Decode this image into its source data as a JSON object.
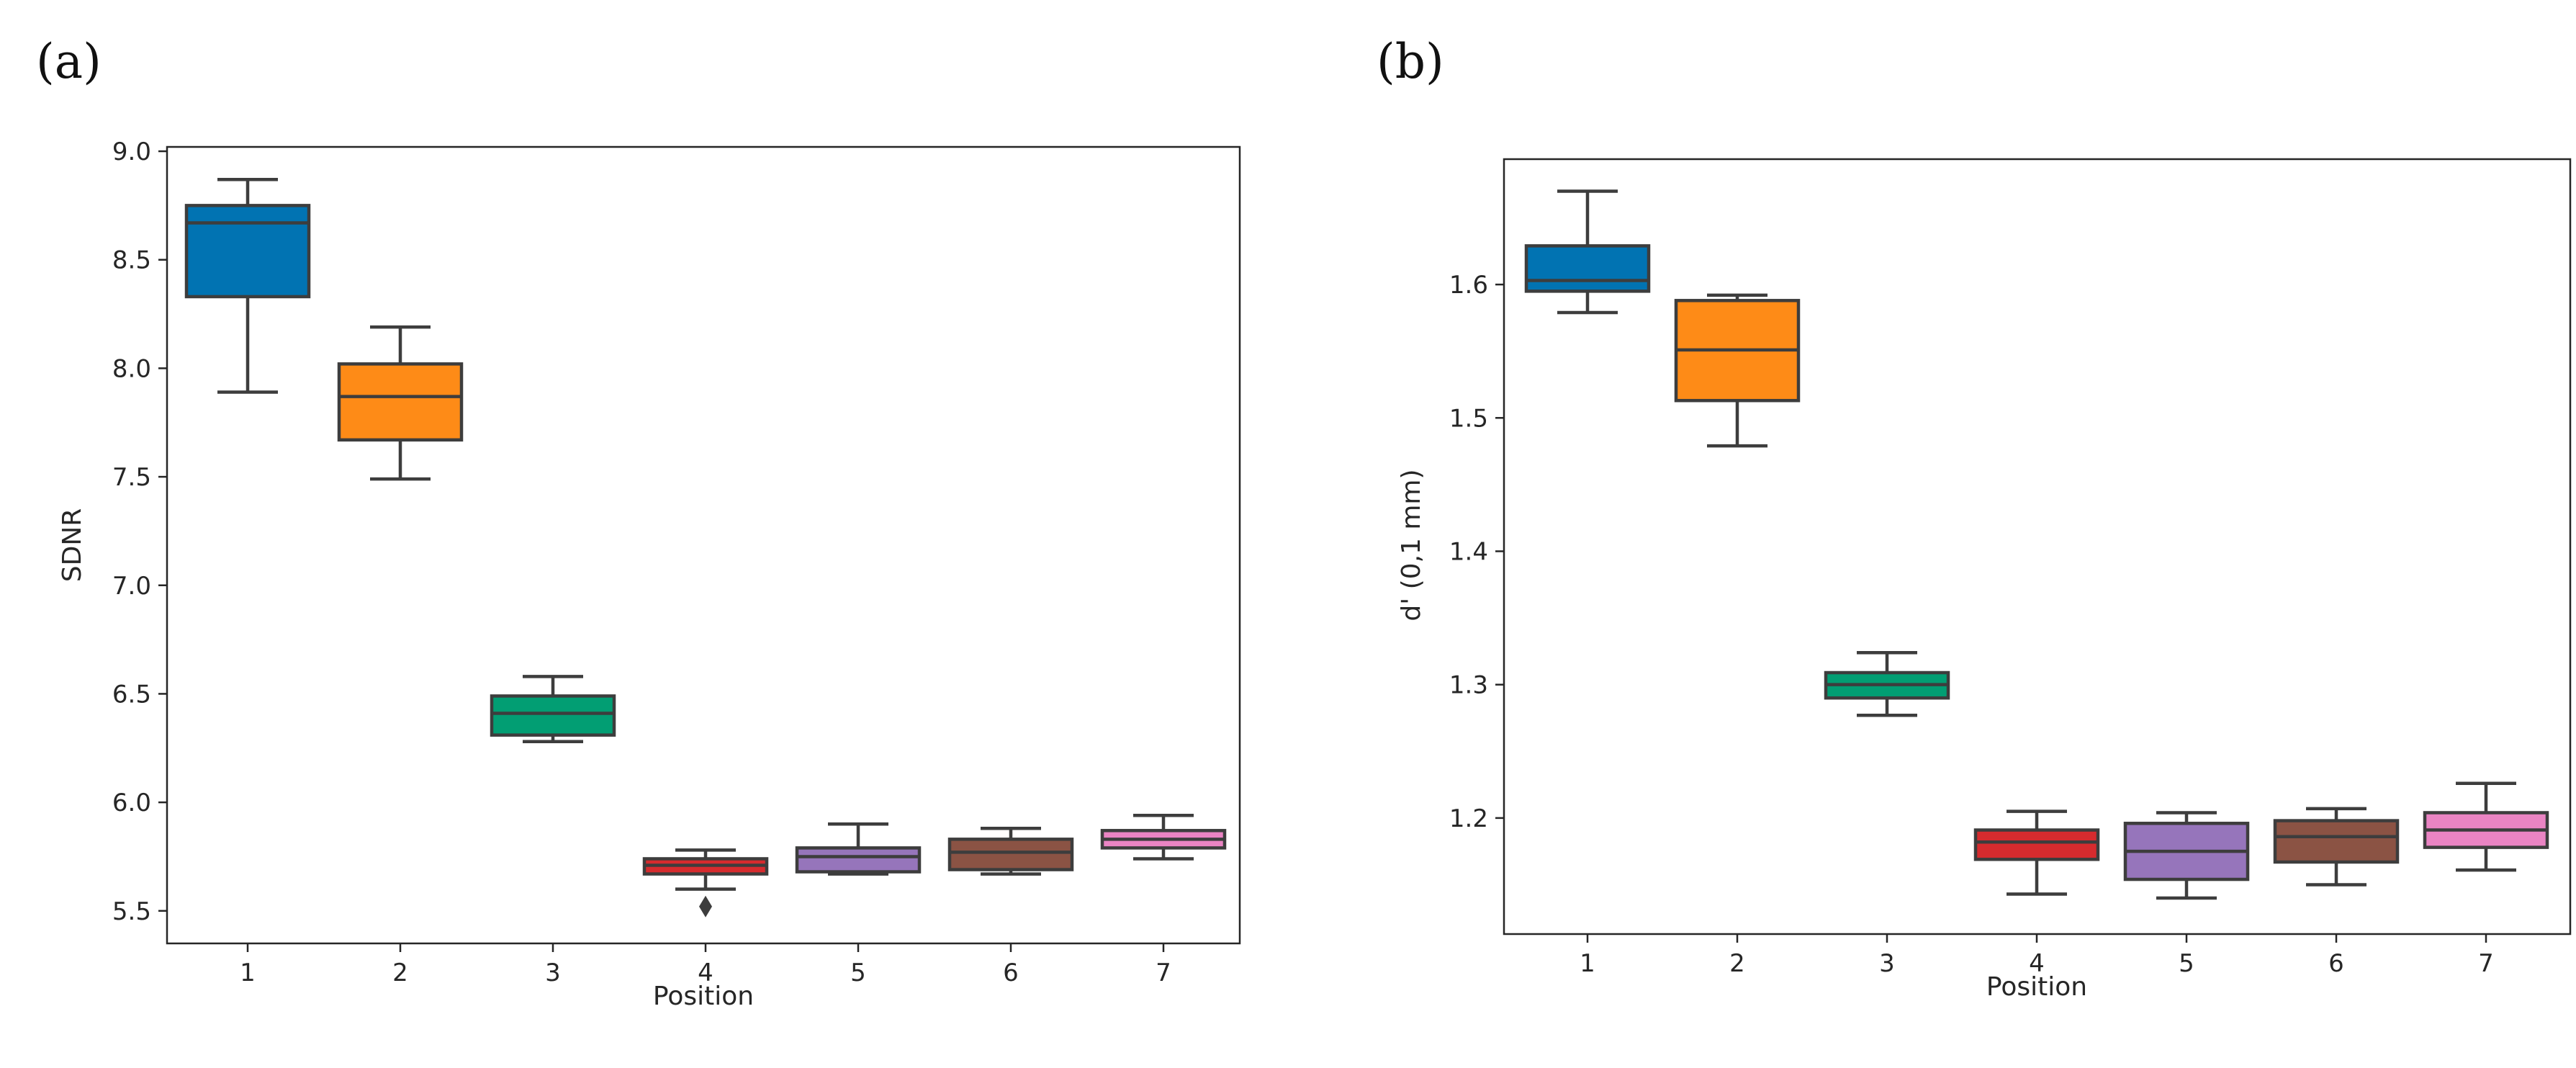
{
  "chart_data": [
    {
      "panel": "(a)",
      "type": "box",
      "xlabel": "Position",
      "ylabel": "SDNR",
      "categories": [
        "1",
        "2",
        "3",
        "4",
        "5",
        "6",
        "7"
      ],
      "yticks": [
        "5.5",
        "6.0",
        "6.5",
        "7.0",
        "7.5",
        "8.0",
        "8.5",
        "9.0"
      ],
      "ytick_values": [
        5.5,
        6.0,
        6.5,
        7.0,
        7.5,
        8.0,
        8.5,
        9.0
      ],
      "ylim": [
        5.35,
        9.02
      ],
      "boxes": [
        {
          "min": 7.89,
          "q1": 8.33,
          "median": 8.67,
          "q3": 8.75,
          "max": 8.87,
          "color": "#0173b2",
          "outliers": []
        },
        {
          "min": 7.49,
          "q1": 7.67,
          "median": 7.87,
          "q3": 8.02,
          "max": 8.19,
          "color": "#fe8b17",
          "outliers": []
        },
        {
          "min": 6.28,
          "q1": 6.31,
          "median": 6.41,
          "q3": 6.49,
          "max": 6.58,
          "color": "#029e73",
          "outliers": []
        },
        {
          "min": 5.6,
          "q1": 5.67,
          "median": 5.71,
          "q3": 5.74,
          "max": 5.78,
          "color": "#d62b2e",
          "outliers": [
            5.52
          ]
        },
        {
          "min": 5.67,
          "q1": 5.68,
          "median": 5.75,
          "q3": 5.79,
          "max": 5.9,
          "color": "#9675bb",
          "outliers": []
        },
        {
          "min": 5.67,
          "q1": 5.69,
          "median": 5.77,
          "q3": 5.83,
          "max": 5.88,
          "color": "#8b5344",
          "outliers": []
        },
        {
          "min": 5.74,
          "q1": 5.79,
          "median": 5.83,
          "q3": 5.87,
          "max": 5.94,
          "color": "#ea84c3",
          "outliers": []
        }
      ]
    },
    {
      "panel": "(b)",
      "type": "box",
      "xlabel": "Position",
      "ylabel": "d' (0,1 mm)",
      "categories": [
        "1",
        "2",
        "3",
        "4",
        "5",
        "6",
        "7"
      ],
      "yticks": [
        "1.2",
        "1.3",
        "1.4",
        "1.5",
        "1.6"
      ],
      "ytick_values": [
        1.2,
        1.3,
        1.4,
        1.5,
        1.6
      ],
      "ylim": [
        1.113,
        1.694
      ],
      "boxes": [
        {
          "min": 1.579,
          "q1": 1.595,
          "median": 1.603,
          "q3": 1.629,
          "max": 1.67,
          "color": "#0173b2",
          "outliers": []
        },
        {
          "min": 1.479,
          "q1": 1.513,
          "median": 1.551,
          "q3": 1.588,
          "max": 1.592,
          "color": "#fe8b17",
          "outliers": []
        },
        {
          "min": 1.277,
          "q1": 1.29,
          "median": 1.3,
          "q3": 1.309,
          "max": 1.324,
          "color": "#029e73",
          "outliers": []
        },
        {
          "min": 1.143,
          "q1": 1.169,
          "median": 1.182,
          "q3": 1.191,
          "max": 1.205,
          "color": "#d62b2e",
          "outliers": []
        },
        {
          "min": 1.14,
          "q1": 1.154,
          "median": 1.175,
          "q3": 1.196,
          "max": 1.204,
          "color": "#9675bb",
          "outliers": []
        },
        {
          "min": 1.15,
          "q1": 1.167,
          "median": 1.186,
          "q3": 1.198,
          "max": 1.207,
          "color": "#8b5344",
          "outliers": []
        },
        {
          "min": 1.161,
          "q1": 1.178,
          "median": 1.191,
          "q3": 1.204,
          "max": 1.226,
          "color": "#ea84c3",
          "outliers": []
        }
      ]
    }
  ]
}
